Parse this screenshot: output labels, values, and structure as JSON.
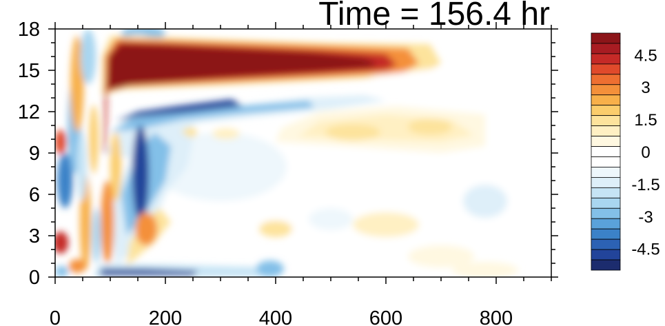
{
  "chart_data": {
    "type": "heatmap",
    "title": "Time = 156.4 hr",
    "xlabel": "",
    "ylabel": "",
    "xlim": [
      0,
      900
    ],
    "ylim": [
      0,
      18
    ],
    "x_ticks": [
      "0",
      "200",
      "400",
      "600",
      "800"
    ],
    "x_tick_values": [
      0,
      200,
      400,
      600,
      800
    ],
    "y_ticks": [
      "0",
      "3",
      "6",
      "9",
      "12",
      "15",
      "18"
    ],
    "y_tick_values": [
      0,
      3,
      6,
      9,
      12,
      15,
      18
    ],
    "colorbar": {
      "levels": [
        -5.5,
        -5,
        -4.5,
        -4,
        -3.5,
        -3,
        -2.5,
        -2,
        -1.5,
        -1,
        -0.5,
        0,
        0.5,
        1,
        1.5,
        2,
        2.5,
        3,
        3.5,
        4,
        4.5,
        5,
        5.5
      ],
      "labels": [
        "4.5",
        "3",
        "1.5",
        "0",
        "-1.5",
        "-3",
        "-4.5"
      ],
      "label_values": [
        4.5,
        3,
        1.5,
        0,
        -1.5,
        -3,
        -4.5
      ],
      "colors_low_to_high": [
        "#1c2c6e",
        "#22449a",
        "#2c62b4",
        "#3b82c8",
        "#5aa2da",
        "#83c0e8",
        "#a9d6f0",
        "#c6e4f5",
        "#deeff9",
        "#eef7fc",
        "#ffffff",
        "#ffffff",
        "#fff8e1",
        "#fff0c3",
        "#fde39c",
        "#fbcd6c",
        "#f8b04a",
        "#f4903a",
        "#ee6f31",
        "#e04a2b",
        "#c52a27",
        "#a81c22",
        "#8c1519"
      ]
    },
    "features": [
      {
        "name": "upper positive jet",
        "x": [
          90,
          640
        ],
        "y": [
          13.5,
          17
        ],
        "value": 5.5
      },
      {
        "name": "negative band below jet",
        "x": [
          100,
          400
        ],
        "y": [
          11.3,
          13.3
        ],
        "value": -5
      },
      {
        "name": "positive band",
        "x": [
          430,
          900
        ],
        "y": [
          9,
          12
        ],
        "value": 1.5
      },
      {
        "name": "near-surface negative",
        "x": [
          70,
          400
        ],
        "y": [
          0,
          0.8
        ],
        "value": -5
      },
      {
        "name": "left-edge positive blob",
        "x": [
          0,
          25
        ],
        "y": [
          1.8,
          3
        ],
        "value": 4.5
      }
    ]
  }
}
